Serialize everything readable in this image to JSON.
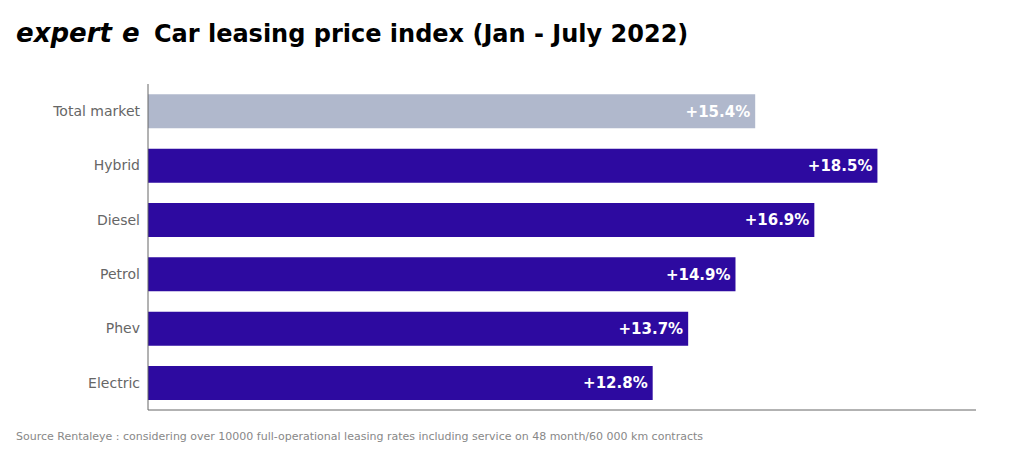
{
  "chart_data": {
    "type": "bar",
    "orientation": "horizontal",
    "title": " Car leasing price index (Jan - July 2022)",
    "annotations": [
      "expert",
      "e",
      "Source Rentaleye : considering over 10000 full-operational leasing rates including service on 48 month/60 000 km contracts"
    ],
    "categories": [
      "Electric",
      "Phev",
      "Petrol",
      "Diesel",
      "Hybrid",
      "Total market"
    ],
    "values": [
      12.8,
      13.7,
      14.9,
      16.9,
      18.5,
      15.4
    ],
    "value_labels": [
      "+12.8%",
      "+13.7%",
      "+14.9%",
      "+16.9%",
      "+18.5%",
      "+15.4%"
    ],
    "data_labels": true,
    "colors": [
      "#2d0aa0",
      "#2d0aa0",
      "#2d0aa0",
      "#2d0aa0",
      "#2d0aa0",
      "#b0b8cc"
    ],
    "xlim": [
      0,
      21
    ],
    "grid": false,
    "tick_labels": "y"
  }
}
